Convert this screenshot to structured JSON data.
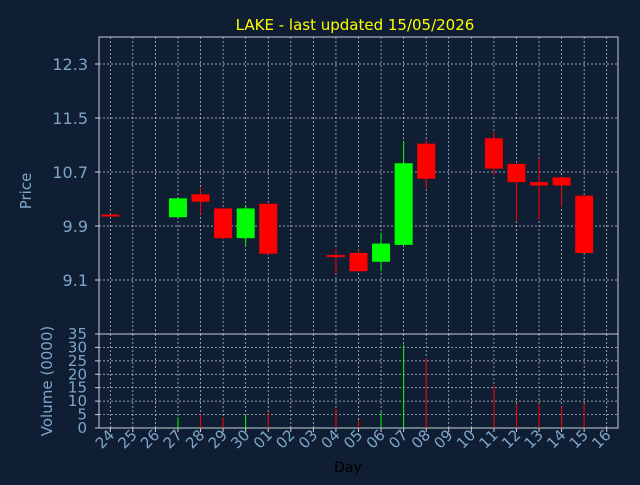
{
  "chart_data": {
    "type": "candlestick",
    "title": "LAKE - last updated 15/05/2026",
    "xlabel": "Day",
    "ylabel_price": "Price",
    "ylabel_volume": "Volume (0000)",
    "grid": true,
    "price_ticks": [
      "9.1",
      "9.9",
      "10.7",
      "11.5",
      "12.3"
    ],
    "price_ylim": [
      8.3,
      12.7
    ],
    "volume_ticks": [
      "0",
      "5",
      "10",
      "15",
      "20",
      "25",
      "30",
      "35"
    ],
    "volume_ylim": [
      0,
      35
    ],
    "x_labels": [
      "24",
      "25",
      "26",
      "27",
      "28",
      "29",
      "30",
      "01",
      "02",
      "03",
      "04",
      "05",
      "06",
      "07",
      "08",
      "09",
      "10",
      "11",
      "12",
      "13",
      "14",
      "15",
      "16"
    ],
    "candles": [
      {
        "day": "24",
        "open": 10.07,
        "high": 10.07,
        "low": 10.04,
        "close": 10.04,
        "volume": 0
      },
      {
        "day": "27",
        "open": 10.03,
        "high": 10.31,
        "low": 10.03,
        "close": 10.31,
        "volume": 4
      },
      {
        "day": "28",
        "open": 10.37,
        "high": 10.47,
        "low": 10.07,
        "close": 10.26,
        "volume": 5
      },
      {
        "day": "29",
        "open": 10.16,
        "high": 10.16,
        "low": 9.71,
        "close": 9.72,
        "volume": 4
      },
      {
        "day": "30",
        "open": 9.72,
        "high": 10.21,
        "low": 9.61,
        "close": 10.16,
        "volume": 5
      },
      {
        "day": "01",
        "open": 10.23,
        "high": 10.23,
        "low": 9.48,
        "close": 9.49,
        "volume": 6
      },
      {
        "day": "04",
        "open": 9.47,
        "high": 9.56,
        "low": 9.19,
        "close": 9.46,
        "volume": 7
      },
      {
        "day": "05",
        "open": 9.5,
        "high": 9.55,
        "low": 9.22,
        "close": 9.23,
        "volume": 3
      },
      {
        "day": "06",
        "open": 9.37,
        "high": 9.8,
        "low": 9.23,
        "close": 9.64,
        "volume": 6
      },
      {
        "day": "07",
        "open": 9.62,
        "high": 11.15,
        "low": 9.62,
        "close": 10.83,
        "volume": 31
      },
      {
        "day": "08",
        "open": 11.12,
        "high": 11.17,
        "low": 10.45,
        "close": 10.6,
        "volume": 26
      },
      {
        "day": "11",
        "open": 11.2,
        "high": 11.3,
        "low": 10.65,
        "close": 10.75,
        "volume": 16
      },
      {
        "day": "12",
        "open": 10.82,
        "high": 10.82,
        "low": 9.98,
        "close": 10.55,
        "volume": 9
      },
      {
        "day": "13",
        "open": 10.55,
        "high": 10.9,
        "low": 9.99,
        "close": 10.5,
        "volume": 9
      },
      {
        "day": "14",
        "open": 10.62,
        "high": 10.62,
        "low": 10.18,
        "close": 10.5,
        "volume": 8
      },
      {
        "day": "15",
        "open": 10.35,
        "high": 10.35,
        "low": 9.5,
        "close": 9.5,
        "volume": 9
      }
    ]
  },
  "colors": {
    "background": "#0f1e33",
    "title": "#ffff00",
    "axis_text": "#7fa6c9",
    "grid": "#c8d0d8",
    "up": "#00ff00",
    "down": "#ff0000",
    "axis_line": "#c8d0d8"
  }
}
